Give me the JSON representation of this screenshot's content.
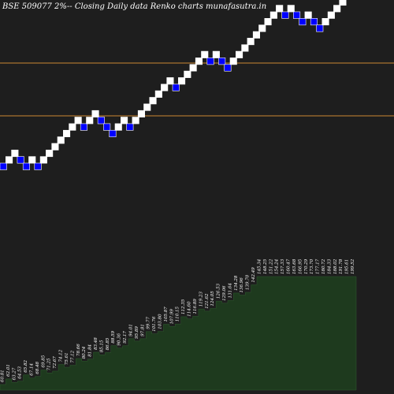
{
  "chart_data": {
    "type": "renko",
    "title": "BSE 509077 2%-- Closing Daily data  Renko  charts munafasutra.in",
    "colors": {
      "background": "#1e1e1e",
      "up_brick": "#ffffff",
      "down_brick": "#0000ff",
      "reference_line": "#cc8833",
      "volume_fill": "#1e3a1e"
    },
    "reference_lines": [
      255.0,
      187.0
    ],
    "bricks": [
      {
        "dir": "down",
        "value": 62.67
      },
      {
        "dir": "up",
        "value": 63.9
      },
      {
        "dir": "up",
        "value": 65.18
      },
      {
        "dir": "down",
        "value": 63.9
      },
      {
        "dir": "down",
        "value": 62.67
      },
      {
        "dir": "up",
        "value": 63.9
      },
      {
        "dir": "down",
        "value": 62.67
      },
      {
        "dir": "up",
        "value": 63.9
      },
      {
        "dir": "up",
        "value": 65.18
      },
      {
        "dir": "up",
        "value": 66.49
      },
      {
        "dir": "up",
        "value": 67.82
      },
      {
        "dir": "up",
        "value": 69.17
      },
      {
        "dir": "up",
        "value": 70.56
      },
      {
        "dir": "up",
        "value": 71.97
      },
      {
        "dir": "down",
        "value": 70.56
      },
      {
        "dir": "up",
        "value": 71.97
      },
      {
        "dir": "up",
        "value": 73.41
      },
      {
        "dir": "down",
        "value": 71.97
      },
      {
        "dir": "down",
        "value": 70.56
      },
      {
        "dir": "down",
        "value": 69.17
      },
      {
        "dir": "up",
        "value": 70.56
      },
      {
        "dir": "up",
        "value": 71.97
      },
      {
        "dir": "down",
        "value": 70.56
      },
      {
        "dir": "up",
        "value": 71.97
      },
      {
        "dir": "up",
        "value": 73.41
      },
      {
        "dir": "up",
        "value": 74.88
      },
      {
        "dir": "up",
        "value": 76.37
      },
      {
        "dir": "up",
        "value": 77.9
      },
      {
        "dir": "up",
        "value": 79.46
      },
      {
        "dir": "up",
        "value": 81.05
      },
      {
        "dir": "down",
        "value": 79.46
      },
      {
        "dir": "up",
        "value": 81.05
      },
      {
        "dir": "up",
        "value": 82.67
      },
      {
        "dir": "up",
        "value": 84.32
      },
      {
        "dir": "up",
        "value": 86.01
      },
      {
        "dir": "up",
        "value": 87.73
      },
      {
        "dir": "down",
        "value": 86.01
      },
      {
        "dir": "up",
        "value": 87.73
      },
      {
        "dir": "down",
        "value": 86.01
      },
      {
        "dir": "down",
        "value": 84.32
      },
      {
        "dir": "up",
        "value": 86.01
      },
      {
        "dir": "up",
        "value": 87.73
      },
      {
        "dir": "up",
        "value": 89.49
      },
      {
        "dir": "up",
        "value": 91.28
      },
      {
        "dir": "up",
        "value": 93.1
      },
      {
        "dir": "up",
        "value": 94.96
      },
      {
        "dir": "up",
        "value": 96.86
      },
      {
        "dir": "up",
        "value": 98.8
      },
      {
        "dir": "up",
        "value": 100.78
      },
      {
        "dir": "down",
        "value": 98.8
      },
      {
        "dir": "up",
        "value": 100.78
      },
      {
        "dir": "down",
        "value": 98.8
      },
      {
        "dir": "down",
        "value": 96.86
      },
      {
        "dir": "up",
        "value": 98.8
      },
      {
        "dir": "down",
        "value": 96.86
      },
      {
        "dir": "down",
        "value": 94.96
      },
      {
        "dir": "up",
        "value": 96.86
      },
      {
        "dir": "up",
        "value": 98.8
      },
      {
        "dir": "up",
        "value": 100.78
      },
      {
        "dir": "up",
        "value": 102.79
      },
      {
        "dir": "up",
        "value": 104.85
      }
    ],
    "volume_labels": [
      "60.81",
      "62.01",
      "63.27",
      "64.53",
      "65.82",
      "67.14",
      "68.48",
      "69.85",
      "71.25",
      "72.67",
      "74.12",
      "75.61",
      "77.12",
      "78.66",
      "80.24",
      "81.84",
      "83.48",
      "85.15",
      "86.85",
      "88.59",
      "90.36",
      "92.17",
      "94.01",
      "95.89",
      "97.81",
      "99.77",
      "101.76",
      "103.80",
      "105.87",
      "107.99",
      "110.15",
      "112.35",
      "114.60",
      "116.89",
      "119.23",
      "121.62",
      "124.05",
      "126.53",
      "129.06",
      "131.64",
      "134.28",
      "136.96",
      "139.70",
      "142.49",
      "145.34",
      "148.25",
      "151.22",
      "154.24",
      "157.33",
      "160.47",
      "163.68",
      "166.95",
      "170.29",
      "173.70",
      "177.17",
      "180.72",
      "184.33",
      "188.02",
      "191.78",
      "195.61",
      "199.52"
    ]
  }
}
